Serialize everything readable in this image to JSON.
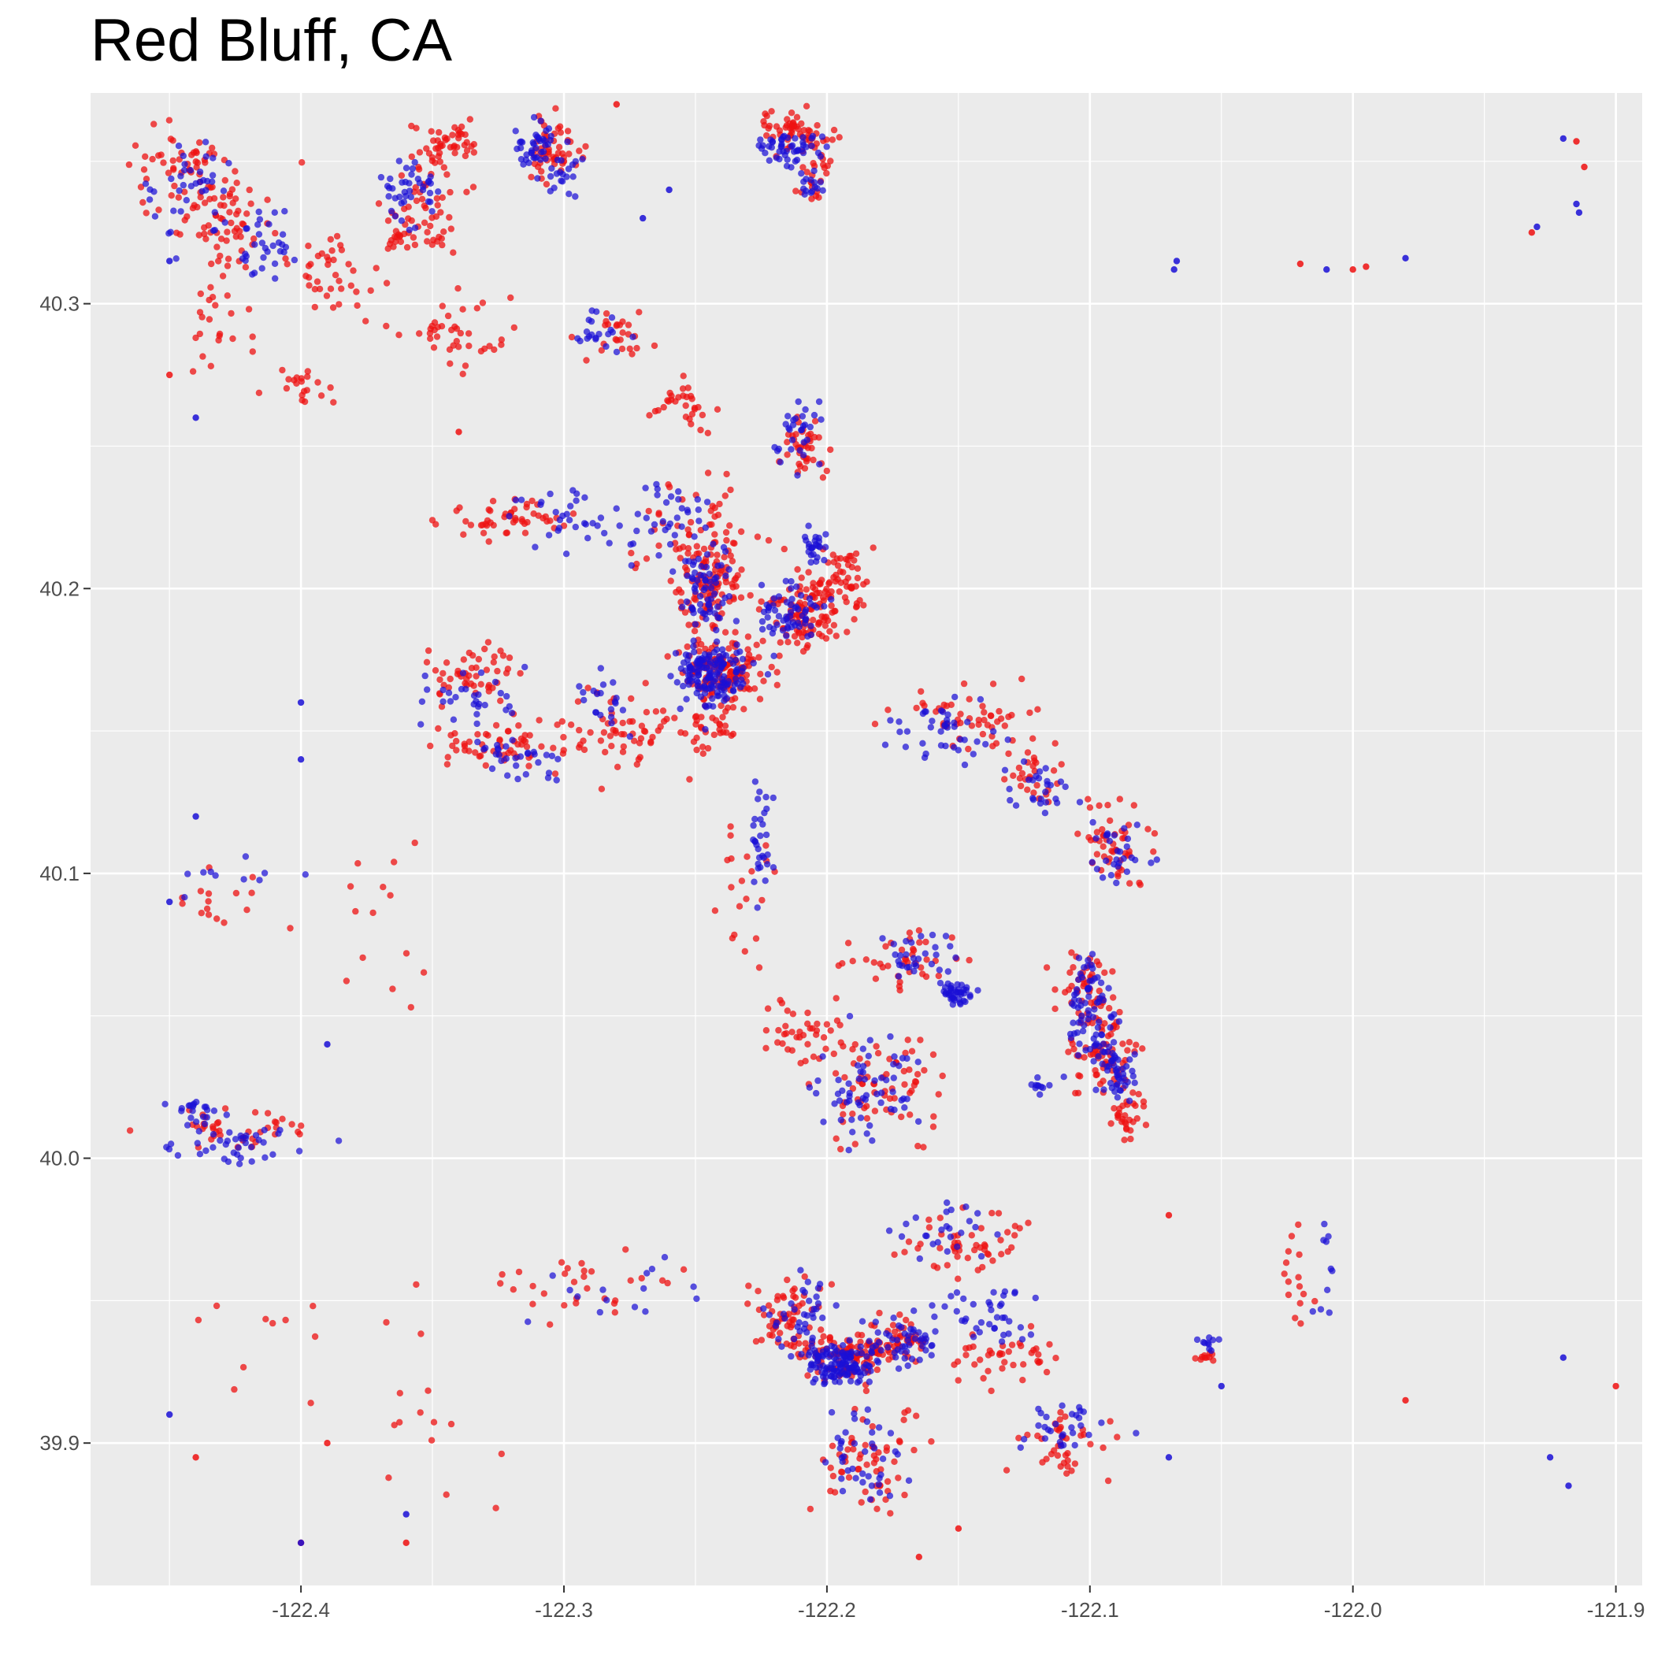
{
  "chart_data": {
    "type": "scatter",
    "title": "Red Bluff, CA",
    "xlabel": "",
    "ylabel": "",
    "xlim": [
      -122.48,
      -121.89
    ],
    "ylim": [
      39.85,
      40.374
    ],
    "x_ticks": [
      {
        "value": -122.4,
        "label": "-122.4"
      },
      {
        "value": -122.3,
        "label": "-122.3"
      },
      {
        "value": -122.2,
        "label": "-122.2"
      },
      {
        "value": -122.1,
        "label": "-122.1"
      },
      {
        "value": -122.0,
        "label": "-122.0"
      },
      {
        "value": -121.9,
        "label": "-121.9"
      }
    ],
    "y_ticks": [
      {
        "value": 39.9,
        "label": "39.9"
      },
      {
        "value": 40.0,
        "label": "40.0"
      },
      {
        "value": 40.1,
        "label": "40.1"
      },
      {
        "value": 40.2,
        "label": "40.2"
      },
      {
        "value": 40.3,
        "label": "40.3"
      }
    ],
    "grid": true,
    "legend": "none",
    "colors": {
      "panel": "#ebebeb",
      "grid_major": "#ffffff",
      "red": "#ee1111",
      "blue": "#1a0fd6"
    },
    "series": [
      {
        "color": "red",
        "clusters": [
          [
            -122.445,
            40.345,
            0.015,
            0.013,
            60
          ],
          [
            -122.425,
            40.33,
            0.015,
            0.012,
            50
          ],
          [
            -122.385,
            40.31,
            0.015,
            0.01,
            40
          ],
          [
            -122.43,
            40.295,
            0.01,
            0.015,
            30
          ],
          [
            -122.4,
            40.27,
            0.01,
            0.006,
            20
          ],
          [
            -122.355,
            40.33,
            0.012,
            0.012,
            60
          ],
          [
            -122.345,
            40.355,
            0.01,
            0.008,
            50
          ],
          [
            -122.305,
            40.355,
            0.008,
            0.01,
            50
          ],
          [
            -122.34,
            40.29,
            0.015,
            0.01,
            40
          ],
          [
            -122.28,
            40.29,
            0.01,
            0.008,
            25
          ],
          [
            -122.21,
            40.36,
            0.015,
            0.006,
            60
          ],
          [
            -122.205,
            40.345,
            0.006,
            0.006,
            20
          ],
          [
            -122.21,
            40.25,
            0.008,
            0.008,
            40
          ],
          [
            -122.255,
            40.265,
            0.01,
            0.01,
            30
          ],
          [
            -122.245,
            40.2,
            0.01,
            0.012,
            100
          ],
          [
            -122.24,
            40.17,
            0.012,
            0.01,
            140
          ],
          [
            -122.21,
            40.19,
            0.01,
            0.01,
            90
          ],
          [
            -122.195,
            40.2,
            0.01,
            0.012,
            70
          ],
          [
            -122.25,
            40.22,
            0.02,
            0.015,
            60
          ],
          [
            -122.325,
            40.225,
            0.02,
            0.005,
            50
          ],
          [
            -122.335,
            40.17,
            0.015,
            0.008,
            50
          ],
          [
            -122.32,
            40.145,
            0.02,
            0.006,
            60
          ],
          [
            -122.28,
            40.15,
            0.015,
            0.01,
            40
          ],
          [
            -122.245,
            40.15,
            0.01,
            0.01,
            30
          ],
          [
            -122.15,
            40.155,
            0.02,
            0.01,
            50
          ],
          [
            -122.12,
            40.135,
            0.01,
            0.01,
            30
          ],
          [
            -122.09,
            40.11,
            0.01,
            0.015,
            50
          ],
          [
            -122.1,
            40.06,
            0.01,
            0.015,
            60
          ],
          [
            -122.095,
            40.035,
            0.01,
            0.01,
            60
          ],
          [
            -122.085,
            40.015,
            0.006,
            0.006,
            30
          ],
          [
            -122.17,
            40.07,
            0.02,
            0.01,
            40
          ],
          [
            -122.18,
            40.025,
            0.02,
            0.015,
            70
          ],
          [
            -122.21,
            40.045,
            0.015,
            0.01,
            40
          ],
          [
            -122.195,
            39.93,
            0.012,
            0.006,
            80
          ],
          [
            -122.175,
            39.935,
            0.012,
            0.006,
            60
          ],
          [
            -122.215,
            39.945,
            0.012,
            0.012,
            60
          ],
          [
            -122.185,
            39.895,
            0.015,
            0.015,
            60
          ],
          [
            -122.15,
            39.97,
            0.02,
            0.008,
            50
          ],
          [
            -122.13,
            39.93,
            0.015,
            0.008,
            40
          ],
          [
            -122.11,
            39.9,
            0.015,
            0.01,
            40
          ],
          [
            -122.425,
            40.01,
            0.025,
            0.006,
            40
          ],
          [
            -122.3,
            39.955,
            0.04,
            0.01,
            30
          ],
          [
            -122.27,
            40.15,
            0.02,
            0.02,
            20
          ],
          [
            -122.23,
            40.09,
            0.01,
            0.02,
            20
          ],
          [
            -122.055,
            39.93,
            0.004,
            0.004,
            10
          ],
          [
            -122.02,
            39.96,
            0.005,
            0.015,
            15
          ],
          [
            -122.43,
            40.09,
            0.015,
            0.01,
            15
          ],
          [
            -122.37,
            40.08,
            0.02,
            0.02,
            15
          ],
          [
            -122.35,
            39.92,
            0.03,
            0.03,
            15
          ],
          [
            -122.42,
            39.93,
            0.02,
            0.02,
            10
          ]
        ],
        "points": [
          [
            -121.915,
            40.357
          ],
          [
            -121.912,
            40.348
          ],
          [
            -121.932,
            40.325
          ],
          [
            -121.995,
            40.313
          ],
          [
            -122.02,
            40.314
          ],
          [
            -122.0,
            40.312
          ],
          [
            -121.9,
            39.92
          ],
          [
            -121.98,
            39.915
          ],
          [
            -122.44,
            39.895
          ],
          [
            -122.39,
            39.9
          ],
          [
            -122.4,
            39.865
          ],
          [
            -122.36,
            39.865
          ],
          [
            -122.45,
            40.275
          ],
          [
            -122.34,
            40.255
          ],
          [
            -122.07,
            39.98
          ],
          [
            -122.15,
            39.87
          ],
          [
            -122.165,
            39.86
          ],
          [
            -122.28,
            40.37
          ],
          [
            -122.3,
            40.35
          ]
        ]
      },
      {
        "color": "blue",
        "clusters": [
          [
            -122.44,
            40.34,
            0.015,
            0.015,
            40
          ],
          [
            -122.415,
            40.32,
            0.01,
            0.01,
            30
          ],
          [
            -122.36,
            40.34,
            0.01,
            0.01,
            40
          ],
          [
            -122.31,
            40.355,
            0.006,
            0.006,
            40
          ],
          [
            -122.3,
            40.345,
            0.006,
            0.01,
            20
          ],
          [
            -122.285,
            40.29,
            0.01,
            0.006,
            20
          ],
          [
            -122.215,
            40.355,
            0.01,
            0.005,
            50
          ],
          [
            -122.205,
            40.342,
            0.004,
            0.004,
            15
          ],
          [
            -122.21,
            40.255,
            0.008,
            0.01,
            30
          ],
          [
            -122.245,
            40.17,
            0.012,
            0.01,
            150
          ],
          [
            -122.245,
            40.2,
            0.008,
            0.01,
            60
          ],
          [
            -122.215,
            40.19,
            0.01,
            0.01,
            60
          ],
          [
            -122.205,
            40.215,
            0.004,
            0.004,
            25
          ],
          [
            -122.26,
            40.22,
            0.015,
            0.012,
            40
          ],
          [
            -122.3,
            40.225,
            0.015,
            0.01,
            30
          ],
          [
            -122.335,
            40.16,
            0.015,
            0.01,
            30
          ],
          [
            -122.32,
            40.14,
            0.015,
            0.006,
            30
          ],
          [
            -122.285,
            40.16,
            0.01,
            0.01,
            20
          ],
          [
            -122.225,
            40.11,
            0.004,
            0.015,
            30
          ],
          [
            -122.155,
            40.15,
            0.015,
            0.01,
            40
          ],
          [
            -122.12,
            40.13,
            0.01,
            0.01,
            25
          ],
          [
            -122.09,
            40.11,
            0.01,
            0.01,
            30
          ],
          [
            -122.1,
            40.05,
            0.008,
            0.02,
            80
          ],
          [
            -122.09,
            40.03,
            0.006,
            0.01,
            40
          ],
          [
            -122.15,
            40.058,
            0.005,
            0.004,
            40
          ],
          [
            -122.165,
            40.07,
            0.015,
            0.008,
            30
          ],
          [
            -122.185,
            40.025,
            0.015,
            0.015,
            60
          ],
          [
            -122.195,
            39.928,
            0.01,
            0.006,
            120
          ],
          [
            -122.17,
            39.935,
            0.012,
            0.008,
            50
          ],
          [
            -122.14,
            39.945,
            0.015,
            0.008,
            40
          ],
          [
            -122.21,
            39.945,
            0.01,
            0.012,
            40
          ],
          [
            -122.185,
            39.895,
            0.012,
            0.015,
            40
          ],
          [
            -122.11,
            39.905,
            0.015,
            0.008,
            30
          ],
          [
            -122.42,
            40.005,
            0.025,
            0.006,
            40
          ],
          [
            -122.44,
            40.015,
            0.008,
            0.005,
            20
          ],
          [
            -122.12,
            40.025,
            0.003,
            0.003,
            10
          ],
          [
            -122.055,
            39.935,
            0.003,
            0.003,
            10
          ],
          [
            -122.01,
            39.96,
            0.004,
            0.015,
            10
          ],
          [
            -122.28,
            39.955,
            0.03,
            0.01,
            15
          ],
          [
            -122.43,
            40.1,
            0.02,
            0.01,
            10
          ],
          [
            -122.155,
            39.975,
            0.015,
            0.008,
            25
          ]
        ],
        "points": [
          [
            -121.915,
            40.335
          ],
          [
            -121.914,
            40.332
          ],
          [
            -121.92,
            40.358
          ],
          [
            -121.93,
            40.327
          ],
          [
            -122.067,
            40.315
          ],
          [
            -122.068,
            40.312
          ],
          [
            -122.01,
            40.312
          ],
          [
            -121.98,
            40.316
          ],
          [
            -121.92,
            39.93
          ],
          [
            -121.918,
            39.885
          ],
          [
            -121.925,
            39.895
          ],
          [
            -122.07,
            39.895
          ],
          [
            -122.05,
            39.92
          ],
          [
            -122.4,
            40.16
          ],
          [
            -122.4,
            40.14
          ],
          [
            -122.44,
            40.12
          ],
          [
            -122.45,
            40.09
          ],
          [
            -122.39,
            40.04
          ],
          [
            -122.4,
            39.865
          ],
          [
            -122.36,
            39.875
          ],
          [
            -122.45,
            39.91
          ],
          [
            -122.45,
            40.315
          ],
          [
            -122.44,
            40.26
          ],
          [
            -122.26,
            40.34
          ],
          [
            -122.27,
            40.33
          ]
        ]
      }
    ]
  }
}
